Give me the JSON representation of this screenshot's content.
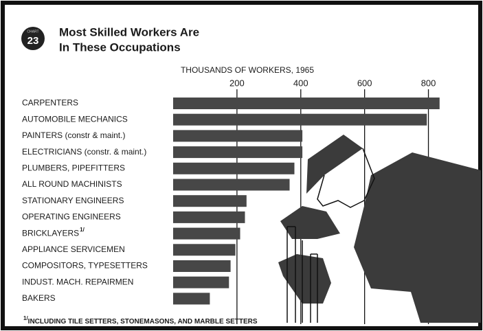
{
  "chart_data": {
    "type": "bar",
    "orientation": "horizontal",
    "badge_label": "CHART",
    "badge_number": "23",
    "title": [
      "Most Skilled Workers Are",
      "In These Occupations"
    ],
    "x_axis_label": "THOUSANDS OF WORKERS, 1965",
    "categories": [
      "CARPENTERS",
      "AUTOMOBILE MECHANICS",
      "PAINTERS (constr & maint.)",
      "ELECTRICIANS (constr. & maint.)",
      "PLUMBERS, PIPEFITTERS",
      "ALL ROUND MACHINISTS",
      "STATIONARY ENGINEERS",
      "OPERATING ENGINEERS",
      "BRICKLAYERS",
      "APPLIANCE SERVICEMEN",
      "COMPOSITORS, TYPESETTERS",
      "INDUST. MACH. REPAIRMEN",
      "BAKERS"
    ],
    "values": [
      835,
      795,
      405,
      405,
      380,
      365,
      230,
      225,
      210,
      195,
      180,
      175,
      115
    ],
    "color": "#474747",
    "xlim": [
      0,
      900
    ],
    "xticks": [
      200,
      400,
      600,
      800
    ],
    "grid": true,
    "footnote_marker": "1/",
    "footnote_category_index": 8,
    "footnote": "INCLUDING TILE SETTERS, STONEMASONS, AND MARBLE SETTERS"
  }
}
